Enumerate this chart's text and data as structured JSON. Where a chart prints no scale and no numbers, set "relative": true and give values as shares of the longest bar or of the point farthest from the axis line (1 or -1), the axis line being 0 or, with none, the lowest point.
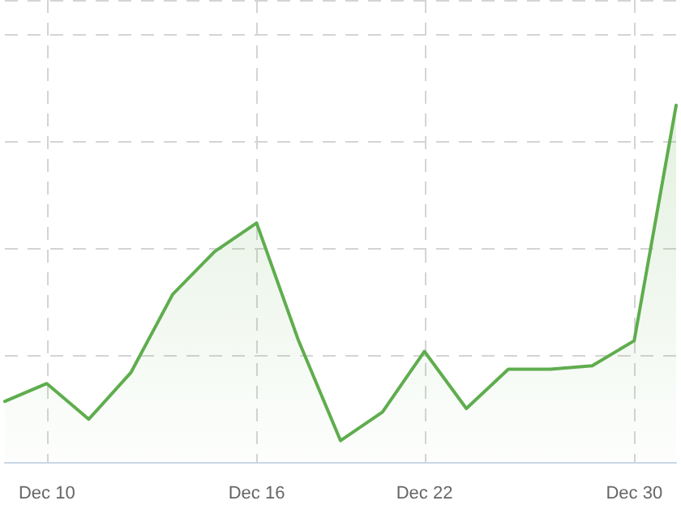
{
  "chart_data": {
    "type": "area",
    "relative": true,
    "categories": [
      null,
      "Dec 10",
      null,
      null,
      null,
      null,
      "Dec 16",
      null,
      null,
      null,
      "Dec 22",
      null,
      null,
      null,
      null,
      "Dec 30",
      null
    ],
    "series": [
      {
        "color": "#5fad4e",
        "values": [
          0.17,
          0.22,
          0.12,
          0.25,
          0.47,
          0.59,
          0.67,
          0.34,
          0.06,
          0.14,
          0.31,
          0.15,
          0.26,
          0.26,
          0.27,
          0.34,
          1
        ]
      }
    ],
    "grid": true,
    "marker": "none",
    "line_style": "solid"
  }
}
